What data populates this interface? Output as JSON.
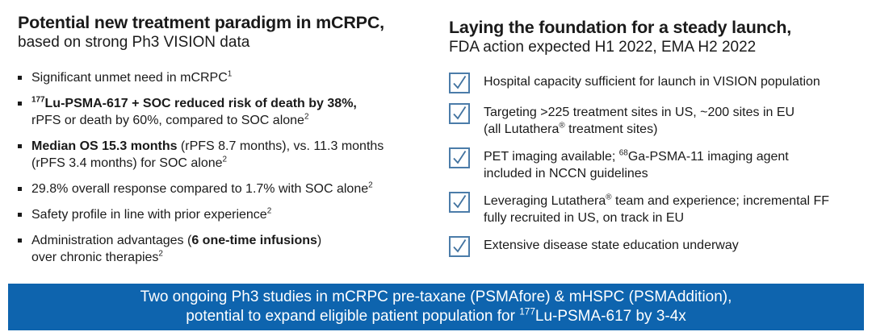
{
  "colors": {
    "banner_bg": "#0e64ae",
    "banner_text": "#ffffff",
    "checkbox_border": "#4b7ca9",
    "check_stroke": "#41729f",
    "body_text": "#1a1a1a"
  },
  "left": {
    "title": "Potential new treatment paradigm in mCRPC,",
    "subtitle": "based on strong Ph3 VISION data",
    "bullets": [
      {
        "segments": [
          {
            "t": "Significant unmet need in mCRPC"
          },
          {
            "t": "1",
            "sup": true
          }
        ]
      },
      {
        "segments": [
          {
            "t": "177",
            "sup": true,
            "bold": true
          },
          {
            "t": "Lu-PSMA-617 + SOC reduced risk of death by 38%,",
            "bold": true
          },
          {
            "br": true
          },
          {
            "t": "rPFS or death by 60%, compared to SOC alone"
          },
          {
            "t": "2",
            "sup": true
          }
        ]
      },
      {
        "segments": [
          {
            "t": "Median OS 15.3 months",
            "bold": true
          },
          {
            "t": " (rPFS 8.7 months), vs. 11.3 months"
          },
          {
            "br": true
          },
          {
            "t": "(rPFS 3.4 months) for SOC alone"
          },
          {
            "t": "2",
            "sup": true
          }
        ]
      },
      {
        "segments": [
          {
            "t": "29.8% overall response compared to 1.7% with SOC alone"
          },
          {
            "t": "2",
            "sup": true
          }
        ]
      },
      {
        "segments": [
          {
            "t": "Safety profile in line with prior experience"
          },
          {
            "t": "2",
            "sup": true
          }
        ]
      },
      {
        "segments": [
          {
            "t": "Administration advantages ("
          },
          {
            "t": "6 one-time infusions",
            "bold": true
          },
          {
            "t": ")"
          },
          {
            "br": true
          },
          {
            "t": "over chronic therapies"
          },
          {
            "t": "2",
            "sup": true
          }
        ]
      }
    ]
  },
  "right": {
    "title": "Laying the foundation for a steady launch,",
    "subtitle": "FDA action expected H1 2022, EMA H2 2022",
    "items": [
      {
        "segments": [
          {
            "t": "Hospital capacity sufficient for launch in VISION population"
          }
        ]
      },
      {
        "segments": [
          {
            "t": "Targeting >225 treatment sites in US, ~200 sites in EU"
          },
          {
            "br": true
          },
          {
            "t": "(all Lutathera"
          },
          {
            "t": "®",
            "sup": true
          },
          {
            "t": " treatment sites)"
          }
        ]
      },
      {
        "segments": [
          {
            "t": "PET imaging available; "
          },
          {
            "t": "68",
            "sup": true
          },
          {
            "t": "Ga-PSMA-11 imaging agent"
          },
          {
            "br": true
          },
          {
            "t": "included in NCCN guidelines"
          }
        ]
      },
      {
        "segments": [
          {
            "t": "Leveraging Lutathera"
          },
          {
            "t": "®",
            "sup": true
          },
          {
            "t": " team and experience; incremental FF"
          },
          {
            "br": true
          },
          {
            "t": "fully recruited in US, on track in EU"
          }
        ]
      },
      {
        "segments": [
          {
            "t": "Extensive disease state education underway"
          }
        ]
      }
    ]
  },
  "banner": {
    "lines": [
      {
        "segments": [
          {
            "t": "Two ongoing Ph3 studies in mCRPC pre-taxane (PSMAfore) & mHSPC (PSMAddition),"
          }
        ]
      },
      {
        "segments": [
          {
            "t": "potential to expand eligible patient population for "
          },
          {
            "t": "177",
            "sup": true
          },
          {
            "t": "Lu-PSMA-617 by 3-4x"
          }
        ]
      }
    ]
  }
}
